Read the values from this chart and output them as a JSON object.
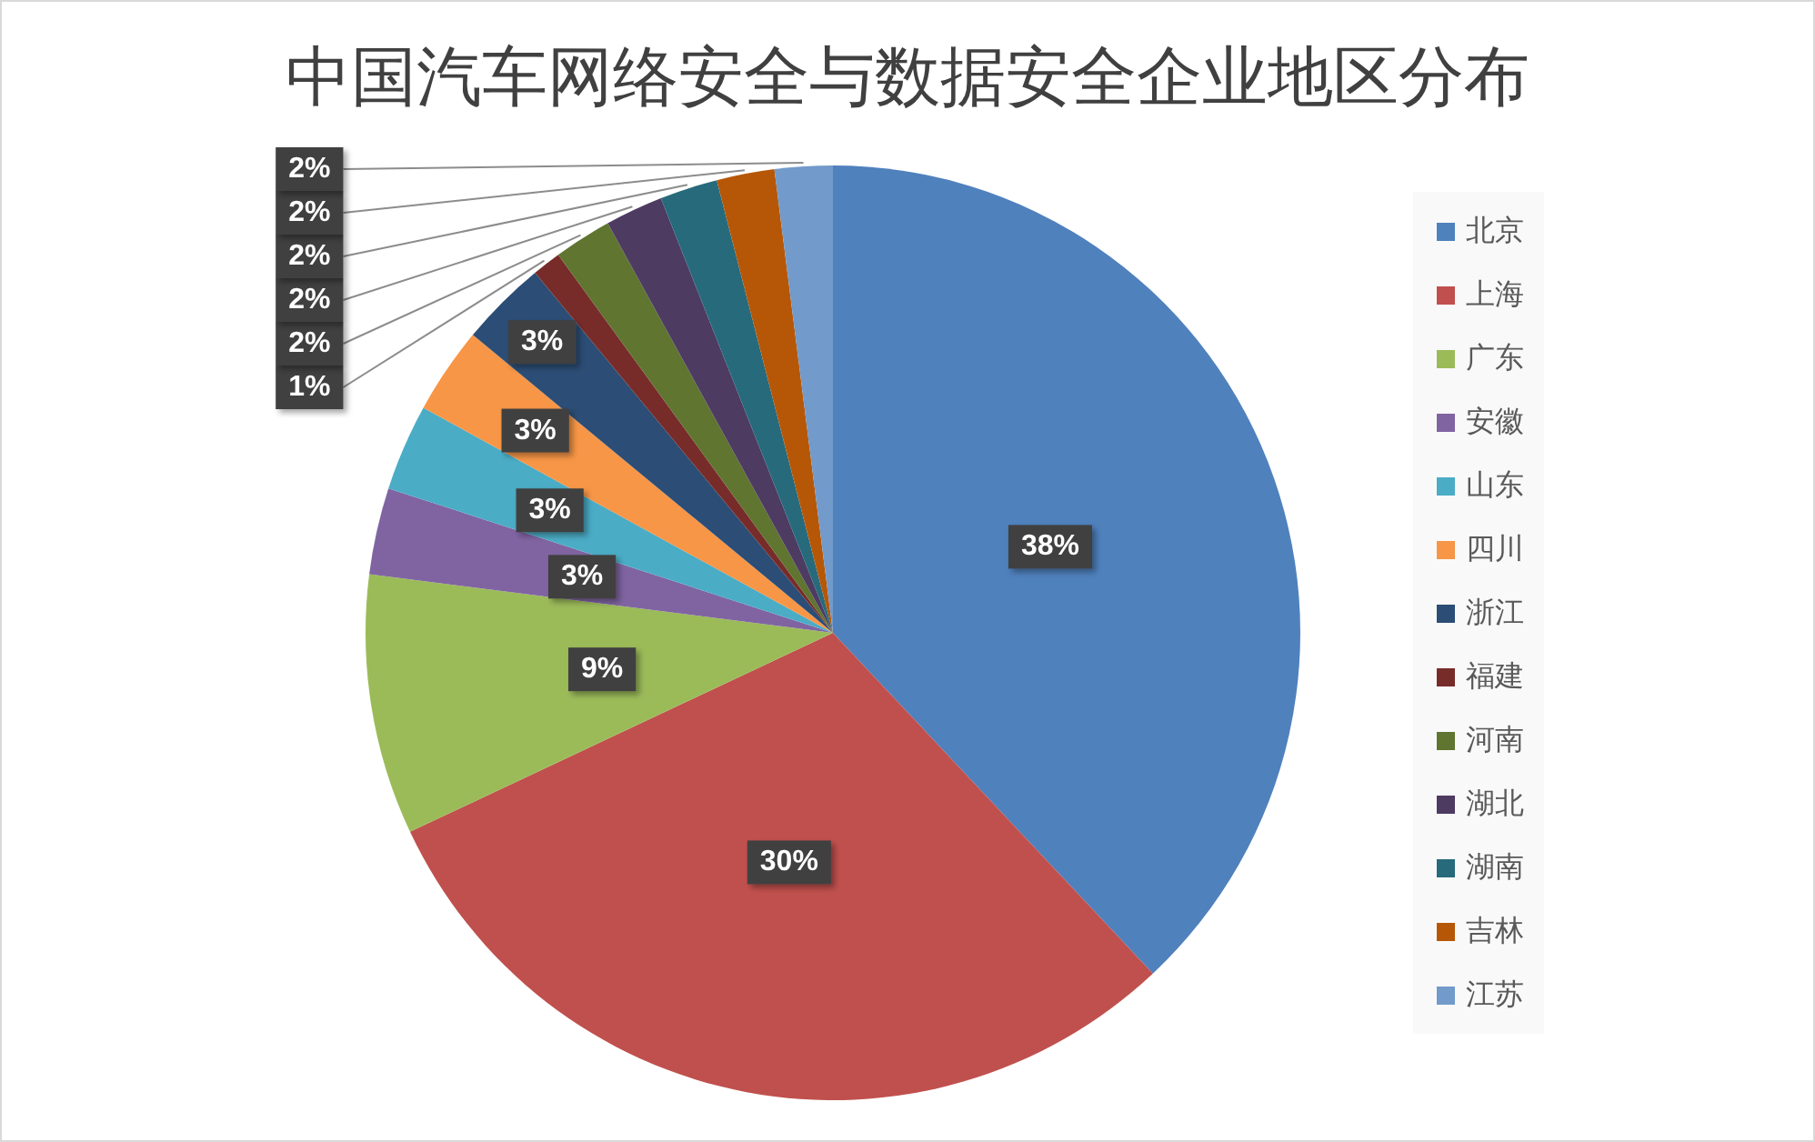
{
  "chart_data": {
    "type": "pie",
    "title": "中国汽车网络安全与数据安全企业地区分布",
    "categories": [
      "北京",
      "上海",
      "广东",
      "安徽",
      "山东",
      "四川",
      "浙江",
      "福建",
      "河南",
      "湖北",
      "湖南",
      "吉林",
      "江苏"
    ],
    "values": [
      38,
      30,
      9,
      3,
      3,
      3,
      3,
      1,
      2,
      2,
      2,
      2,
      2
    ],
    "colors": [
      "#4f81bd",
      "#c0504d",
      "#9bbb59",
      "#8064a2",
      "#4bacc6",
      "#f79646",
      "#2c4d75",
      "#772c2a",
      "#5f7530",
      "#4d3b62",
      "#276a7c",
      "#b65708",
      "#729aca"
    ],
    "value_labels": [
      "38%",
      "30%",
      "9%",
      "3%",
      "3%",
      "3%",
      "3%",
      "1%",
      "2%",
      "2%",
      "2%",
      "2%",
      "2%"
    ],
    "legend": "right"
  }
}
